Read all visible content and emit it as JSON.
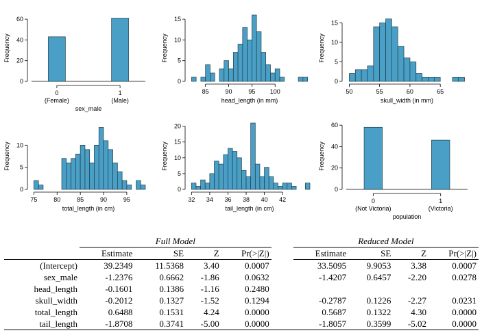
{
  "chart_data": [
    {
      "type": "bar",
      "xlabel": "sex_male",
      "ylabel": "Frequency",
      "categories": [
        0,
        1
      ],
      "category_labels": [
        "(Female)",
        "(Male)"
      ],
      "values": [
        43,
        61
      ],
      "yticks": [
        0,
        20,
        40,
        60
      ],
      "ylim": [
        0,
        64
      ]
    },
    {
      "type": "histogram",
      "xlabel": "head_length (in mm)",
      "ylabel": "Frequency",
      "bin_start": 82,
      "bin_width": 1,
      "values": [
        1,
        0,
        1,
        4,
        2,
        0,
        3,
        5,
        3,
        7,
        9,
        13,
        10,
        16,
        12,
        7,
        4,
        2,
        3,
        1,
        0,
        0,
        0,
        1,
        1
      ],
      "xticks": [
        85,
        90,
        95,
        100
      ],
      "yticks": [
        0,
        5,
        10,
        15
      ],
      "xlim": [
        81.5,
        107.5
      ],
      "ylim": [
        0,
        16
      ]
    },
    {
      "type": "histogram",
      "xlabel": "skull_width (in mm)",
      "ylabel": "Frequency",
      "bin_start": 50,
      "bin_width": 1,
      "values": [
        2,
        3,
        3,
        4,
        14,
        15,
        16,
        14,
        9,
        6,
        5,
        2,
        1,
        1,
        1,
        0,
        0,
        1,
        1
      ],
      "xticks": [
        50,
        55,
        60,
        65
      ],
      "yticks": [
        0,
        5,
        10,
        15
      ],
      "xlim": [
        49.5,
        69.5
      ],
      "ylim": [
        0,
        17
      ]
    },
    {
      "type": "histogram",
      "xlabel": "total_length (in cm)",
      "ylabel": "Frequency",
      "bin_start": 75,
      "bin_width": 1,
      "values": [
        2,
        1,
        0,
        0,
        0,
        0,
        7,
        6,
        7,
        8,
        10,
        9,
        6,
        10,
        14,
        11,
        9,
        6,
        4,
        2,
        1,
        0,
        2,
        1
      ],
      "xticks": [
        75,
        80,
        85,
        90,
        95
      ],
      "yticks": [
        0,
        5,
        10
      ],
      "xlim": [
        74.5,
        99
      ],
      "ylim": [
        0,
        15
      ]
    },
    {
      "type": "histogram",
      "xlabel": "tail_length (in cm)",
      "ylabel": "Frequency",
      "bin_start": 32,
      "bin_width": 0.5,
      "values": [
        2,
        1,
        3,
        2,
        5,
        9,
        8,
        11,
        13,
        12,
        10,
        6,
        4,
        21,
        8,
        4,
        7,
        4,
        2,
        1,
        2,
        2,
        1,
        0,
        0,
        2
      ],
      "xticks": [
        32,
        34,
        36,
        38,
        40,
        42
      ],
      "yticks": [
        0,
        5,
        10,
        15,
        20
      ],
      "xlim": [
        31.75,
        45
      ],
      "ylim": [
        0,
        21
      ]
    },
    {
      "type": "bar",
      "xlabel": "population",
      "ylabel": "Frequency",
      "categories": [
        0,
        1
      ],
      "category_labels": [
        "(Not Victoria)",
        "(Victoria)"
      ],
      "values": [
        58,
        46
      ],
      "yticks": [
        0,
        20,
        40,
        60
      ],
      "ylim": [
        0,
        62
      ]
    }
  ],
  "table": {
    "full_model_title": "Full Model",
    "reduced_model_title": "Reduced Model",
    "columns": [
      "Estimate",
      "SE",
      "Z",
      "Pr(>|Z|)"
    ],
    "rows": [
      {
        "name": "(Intercept)",
        "full": [
          "39.2349",
          "11.5368",
          "3.40",
          "0.0007"
        ],
        "reduced": [
          "33.5095",
          "9.9053",
          "3.38",
          "0.0007"
        ]
      },
      {
        "name": "sex_male",
        "full": [
          "-1.2376",
          "0.6662",
          "-1.86",
          "0.0632"
        ],
        "reduced": [
          "-1.4207",
          "0.6457",
          "-2.20",
          "0.0278"
        ]
      },
      {
        "name": "head_length",
        "full": [
          "-0.1601",
          "0.1386",
          "-1.16",
          "0.2480"
        ],
        "reduced": [
          "",
          "",
          "",
          ""
        ]
      },
      {
        "name": "skull_width",
        "full": [
          "-0.2012",
          "0.1327",
          "-1.52",
          "0.1294"
        ],
        "reduced": [
          "-0.2787",
          "0.1226",
          "-2.27",
          "0.0231"
        ]
      },
      {
        "name": "total_length",
        "full": [
          "0.6488",
          "0.1531",
          "4.24",
          "0.0000"
        ],
        "reduced": [
          "0.5687",
          "0.1322",
          "4.30",
          "0.0000"
        ]
      },
      {
        "name": "tail_length",
        "full": [
          "-1.8708",
          "0.3741",
          "-5.00",
          "0.0000"
        ],
        "reduced": [
          "-1.8057",
          "0.3599",
          "-5.02",
          "0.0000"
        ]
      }
    ]
  }
}
